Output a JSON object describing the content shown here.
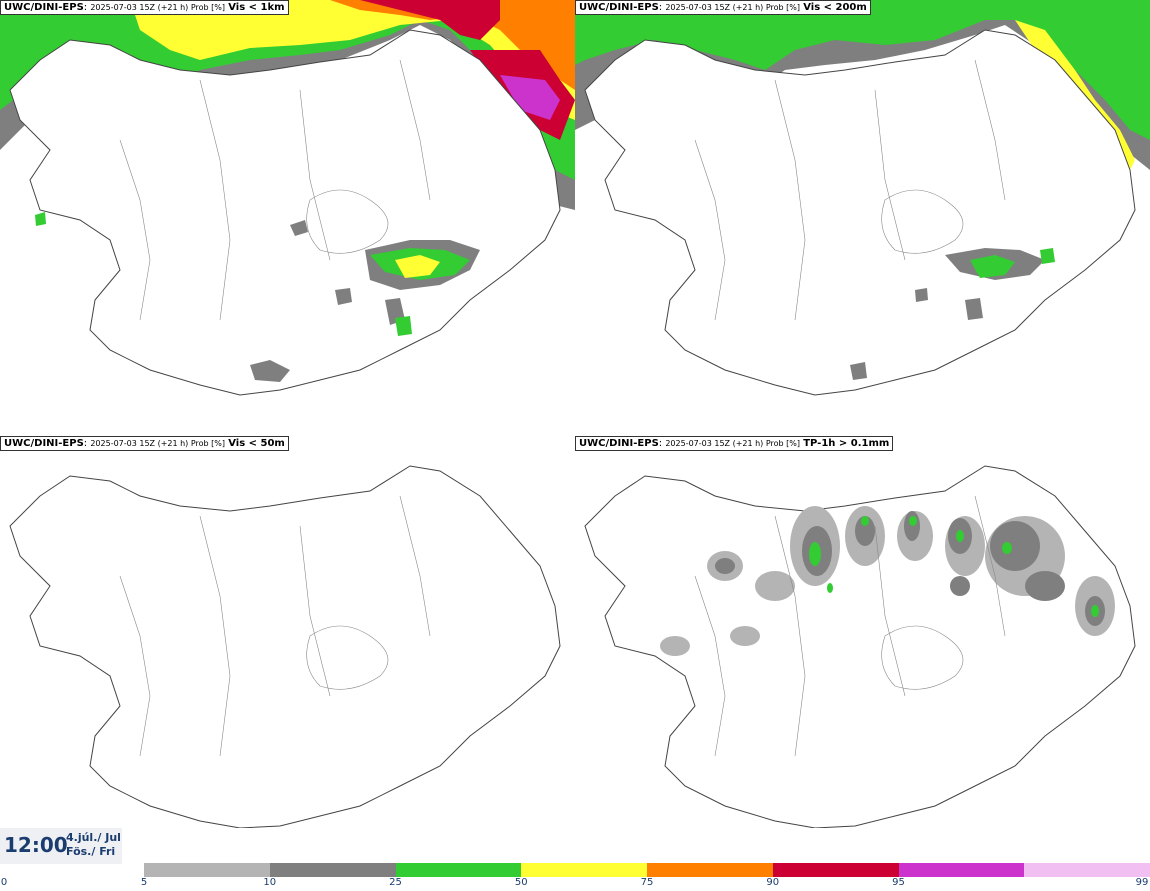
{
  "panels": [
    {
      "prefix": "UWC/DINI-EPS",
      "run": "2025-07-03 15Z (+21 h) Prob [%]",
      "variable": "Vis < 1km"
    },
    {
      "prefix": "UWC/DINI-EPS",
      "run": "2025-07-03 15Z (+21 h) Prob [%]",
      "variable": "Vis < 200m"
    },
    {
      "prefix": "UWC/DINI-EPS",
      "run": "2025-07-03 15Z (+21 h) Prob [%]",
      "variable": "Vis < 50m"
    },
    {
      "prefix": "UWC/DINI-EPS",
      "run": "2025-07-03 15Z (+21 h) Prob [%]",
      "variable": "TP-1h > 0.1mm"
    }
  ],
  "valid_time": {
    "time": "12:00",
    "date_line1": "4.júl./ Jul",
    "date_line2": "Fös./ Fri"
  },
  "legend": {
    "ticks": [
      "0",
      "5",
      "10",
      "25",
      "50",
      "75",
      "90",
      "95",
      "99"
    ],
    "colors": [
      "#b4b4b4",
      "#7f7f7f",
      "#33cc33",
      "#ffff33",
      "#ff7f00",
      "#cc0033",
      "#cc33cc",
      "#f2bff2"
    ]
  }
}
